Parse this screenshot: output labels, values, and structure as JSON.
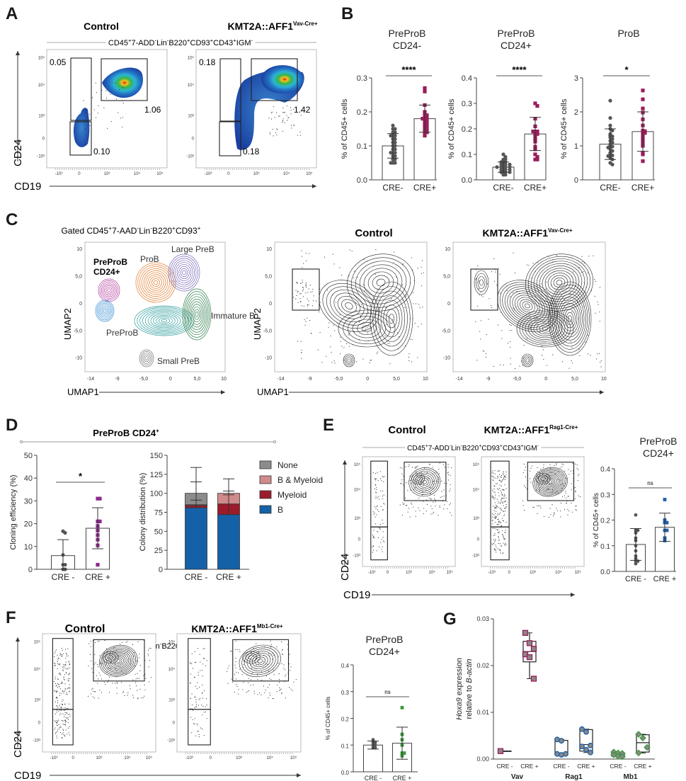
{
  "panels": {
    "A": "A",
    "B": "B",
    "C": "C",
    "D": "D",
    "E": "E",
    "F": "F",
    "G": "G"
  },
  "gating": {
    "full": [
      [
        "CD45",
        ""
      ],
      [
        "+",
        "sup"
      ],
      [
        "7-ADD",
        ""
      ],
      [
        "-",
        "sup"
      ],
      [
        "Lin",
        ""
      ],
      [
        "-",
        "sup"
      ],
      [
        "B220",
        ""
      ],
      [
        "+",
        "sup"
      ],
      [
        "CD93",
        ""
      ],
      [
        "+",
        "sup"
      ],
      [
        "CD43",
        ""
      ],
      [
        "+",
        "sup"
      ],
      [
        "IGM",
        ""
      ],
      [
        "-",
        "sup"
      ]
    ],
    "umap": [
      [
        "Gated CD45",
        ""
      ],
      [
        "+",
        "sup"
      ],
      [
        "7-AAD",
        ""
      ],
      [
        "-",
        "sup"
      ],
      [
        "Lin",
        ""
      ],
      [
        "-",
        "sup"
      ],
      [
        "B220",
        ""
      ],
      [
        "+",
        "sup"
      ],
      [
        "CD93",
        ""
      ],
      [
        "+",
        "sup"
      ]
    ]
  },
  "labels": {
    "control": "Control",
    "kmt2a": "KMT2A::AFF1",
    "vav_sup": "Vav-Cre+",
    "rag1_sup": "Rag1-Cre+",
    "mb1_sup": "Mb1-Cre+",
    "cd24": "CD24",
    "cd19": "CD19",
    "umap1": "UMAP1",
    "umap2": "UMAP2",
    "flow_ticks": [
      "10⁵",
      "10⁴",
      "10³",
      "0",
      "-10³"
    ],
    "umap_xticks": [
      "-14",
      "-9",
      "-5,0",
      "0",
      "5,0",
      "10"
    ],
    "umap_yticks": [
      "10",
      "5,0",
      "0",
      "-5,0",
      "-10"
    ]
  },
  "panelA": {
    "control_gates": [
      "0.05",
      "1.06",
      "0.10"
    ],
    "kmt2a_gates": [
      "0.18",
      "1.42",
      "0.18"
    ]
  },
  "panelC": {
    "clusters": [
      "PreProB",
      "CD24+",
      "ProB",
      "Large PreB",
      "Immature B",
      "PreProB",
      "Small PreB"
    ]
  },
  "panelD": {
    "title": "PreProB CD24",
    "title_sup": "+"
  },
  "colors": {
    "cre_minus": "#555555",
    "vav_cre_plus": "#9b1d5a",
    "cloning_cre_plus": "#8b2a8b",
    "rag1": "#1f5fa8",
    "mb1": "#3c9a3c",
    "B": "#1461a8",
    "Myeloid": "#9b1b2a",
    "B & Myeloid": "#d08a8a",
    "None": "#8c8c8c"
  },
  "chart_data": [
    {
      "id": "B1",
      "type": "bar",
      "title": [
        "PreProB",
        "CD24-"
      ],
      "ylabel": "% of CD45+ cells",
      "categories": [
        "CRE-",
        "CRE+"
      ],
      "ylim": [
        0,
        0.3
      ],
      "yticks": [
        "0.0",
        "0.1",
        "0.2",
        "0.3"
      ],
      "ytick_values": [
        0,
        0.1,
        0.2,
        0.3
      ],
      "means": [
        0.1,
        0.18
      ],
      "sd": [
        0.036,
        0.04
      ],
      "significance": "****",
      "points": [
        [
          0.16,
          0.15,
          0.15,
          0.14,
          0.14,
          0.13,
          0.13,
          0.13,
          0.12,
          0.12,
          0.11,
          0.11,
          0.1,
          0.1,
          0.09,
          0.09,
          0.08,
          0.08,
          0.08,
          0.07,
          0.07,
          0.06,
          0.06,
          0.05,
          0.05,
          0.05
        ],
        [
          0.27,
          0.26,
          0.22,
          0.2,
          0.19,
          0.19,
          0.18,
          0.18,
          0.18,
          0.17,
          0.17,
          0.16,
          0.16,
          0.15,
          0.15,
          0.14,
          0.14,
          0.13
        ]
      ]
    },
    {
      "id": "B2",
      "type": "bar",
      "title": [
        "PreProB",
        "CD24+"
      ],
      "ylabel": "% of CD45+ cells",
      "categories": [
        "CRE-",
        "CRE+"
      ],
      "ylim": [
        0,
        0.4
      ],
      "yticks": [
        "0.0",
        "0.1",
        "0.2",
        "0.3",
        "0.4"
      ],
      "ytick_values": [
        0,
        0.1,
        0.2,
        0.3,
        0.4
      ],
      "means": [
        0.05,
        0.18
      ],
      "sd": [
        0.02,
        0.065
      ],
      "significance": "****",
      "points": [
        [
          0.1,
          0.09,
          0.08,
          0.08,
          0.07,
          0.07,
          0.07,
          0.06,
          0.06,
          0.06,
          0.06,
          0.05,
          0.05,
          0.05,
          0.05,
          0.05,
          0.04,
          0.04,
          0.04,
          0.04,
          0.03,
          0.03,
          0.03,
          0.03,
          0.02,
          0.02
        ],
        [
          0.3,
          0.29,
          0.24,
          0.21,
          0.19,
          0.19,
          0.19,
          0.18,
          0.18,
          0.17,
          0.16,
          0.15,
          0.13,
          0.12,
          0.1,
          0.09,
          0.08,
          0.08
        ]
      ]
    },
    {
      "id": "B3",
      "type": "bar",
      "title": [
        "ProB"
      ],
      "ylabel": "% of CD45+ cells",
      "categories": [
        "CRE-",
        "CRE+"
      ],
      "ylim": [
        0,
        3
      ],
      "yticks": [
        "0",
        "1",
        "2",
        "3"
      ],
      "ytick_values": [
        0,
        1,
        2,
        3
      ],
      "means": [
        1.05,
        1.42
      ],
      "sd": [
        0.45,
        0.58
      ],
      "significance": "*",
      "points": [
        [
          2.33,
          1.82,
          1.6,
          1.5,
          1.45,
          1.35,
          1.3,
          1.28,
          1.25,
          1.2,
          1.15,
          1.1,
          1.05,
          1.0,
          0.98,
          0.95,
          0.9,
          0.85,
          0.8,
          0.75,
          0.72,
          0.7,
          0.65,
          0.6,
          0.5,
          0.45
        ],
        [
          2.63,
          2.37,
          2.1,
          1.98,
          1.78,
          1.6,
          1.45,
          1.43,
          1.4,
          1.38,
          1.3,
          1.2,
          1.15,
          1.05,
          1.0,
          0.8,
          0.75,
          0.55
        ]
      ]
    },
    {
      "id": "D1",
      "type": "bar",
      "title": [],
      "ylabel": "Cloning efficiency (%)",
      "categories": [
        "CRE -",
        "CRE +"
      ],
      "ylim": [
        0,
        50
      ],
      "yticks": [
        "0",
        "10",
        "20",
        "30",
        "40",
        "50"
      ],
      "ytick_values": [
        0,
        10,
        20,
        30,
        40,
        50
      ],
      "means": [
        6,
        18
      ],
      "sd": [
        7,
        9
      ],
      "significance": "*",
      "points": [
        [
          16.7,
          16,
          6.3,
          2,
          2,
          0,
          0
        ],
        [
          31,
          31,
          21,
          21,
          19,
          17,
          15,
          13,
          10.5,
          2
        ]
      ]
    },
    {
      "id": "D2",
      "type": "stacked-bar",
      "ylabel": "Colony distribution (%)",
      "categories": [
        "CRE -",
        "CRE +"
      ],
      "ylim": [
        0,
        150
      ],
      "yticks": [
        "0",
        "25",
        "50",
        "75",
        "100",
        "125",
        "150"
      ],
      "ytick_values": [
        0,
        25,
        50,
        75,
        100,
        125,
        150
      ],
      "series": [
        {
          "name": "B",
          "values": [
            81,
            72
          ],
          "sd": [
            0,
            0
          ]
        },
        {
          "name": "Myeloid",
          "values": [
            3,
            14
          ],
          "sd": [
            0,
            0
          ]
        },
        {
          "name": "B & Myeloid",
          "values": [
            1,
            14
          ],
          "sd": [
            0,
            0
          ]
        },
        {
          "name": "None",
          "values": [
            15,
            0
          ],
          "sd": [
            0,
            0
          ]
        }
      ],
      "error_bars": [
        [
          82,
          91,
          115,
          134
        ],
        [
          72,
          98,
          103,
          119
        ]
      ],
      "legend": [
        "None",
        "B & Myeloid",
        "Myeloid",
        "B"
      ],
      "legend_position": "right"
    },
    {
      "id": "E",
      "type": "bar",
      "title": [
        "PreProB",
        "CD24+"
      ],
      "ylabel": "% of CD45+ cells",
      "categories": [
        "CRE -",
        "CRE +"
      ],
      "ylim": [
        0,
        0.4
      ],
      "yticks": [
        "0.0",
        "0.1",
        "0.2",
        "0.3",
        "0.4"
      ],
      "ytick_values": [
        0,
        0.1,
        0.2,
        0.3,
        0.4
      ],
      "means": [
        0.105,
        0.172
      ],
      "sd": [
        0.062,
        0.055
      ],
      "significance": "ns",
      "points": [
        [
          0.22,
          0.16,
          0.16,
          0.15,
          0.13,
          0.12,
          0.1,
          0.08,
          0.06,
          0.05,
          0.04,
          0.04,
          0.03
        ],
        [
          0.28,
          0.2,
          0.19,
          0.19,
          0.16,
          0.16,
          0.13,
          0.12
        ]
      ]
    },
    {
      "id": "F",
      "type": "bar",
      "title": [
        "PreProB",
        "CD24+"
      ],
      "ylabel": "% of CD45+ cells",
      "categories": [
        "CRE -",
        "CRE +"
      ],
      "ylim": [
        0,
        0.4
      ],
      "yticks": [
        "0.0",
        "0.1",
        "0.2",
        "0.3",
        "0.4"
      ],
      "ytick_values": [
        0,
        0.1,
        0.2,
        0.3,
        0.4
      ],
      "means": [
        0.1,
        0.107
      ],
      "sd": [
        0.015,
        0.06
      ],
      "significance": "ns",
      "points": [
        [
          0.12,
          0.11,
          0.11,
          0.1,
          0.1,
          0.09,
          0.09
        ],
        [
          0.24,
          0.14,
          0.12,
          0.1,
          0.07,
          0.07,
          0.06
        ]
      ]
    },
    {
      "id": "G",
      "type": "box",
      "ylabel": [
        "Hoxa9",
        " expression",
        "relative to ",
        "B-actin"
      ],
      "ylim": [
        0,
        0.03
      ],
      "yticks": [
        "0.00",
        "0.01",
        "0.02",
        "0.03"
      ],
      "ytick_values": [
        0,
        0.01,
        0.02,
        0.03
      ],
      "groups": [
        "Vav",
        "Rag1",
        "Mb1"
      ],
      "categories": [
        "CRE -",
        "CRE +"
      ],
      "boxes": [
        {
          "group": "Vav",
          "cat": "CRE -",
          "min": 0.0017,
          "q1": 0.0017,
          "median": 0.0017,
          "q3": 0.0017,
          "max": 0.0017,
          "points": [
            0.0017
          ]
        },
        {
          "group": "Vav",
          "cat": "CRE +",
          "min": 0.0172,
          "q1": 0.0208,
          "median": 0.023,
          "q3": 0.0252,
          "max": 0.027,
          "points": [
            0.027,
            0.0248,
            0.0236,
            0.0224,
            0.0218,
            0.0172
          ]
        },
        {
          "group": "Rag1",
          "cat": "CRE -",
          "min": 0.0009,
          "q1": 0.001,
          "median": 0.0011,
          "q3": 0.004,
          "max": 0.0042,
          "points": [
            0.0042,
            0.0039,
            0.0011,
            0.0011,
            0.0009
          ]
        },
        {
          "group": "Rag1",
          "cat": "CRE +",
          "min": 0.0014,
          "q1": 0.0017,
          "median": 0.0031,
          "q3": 0.0063,
          "max": 0.0064,
          "points": [
            0.0064,
            0.0058,
            0.0029,
            0.0027,
            0.002,
            0.0014
          ]
        },
        {
          "group": "Mb1",
          "cat": "CRE -",
          "min": 0.0005,
          "q1": 0.0006,
          "median": 0.0009,
          "q3": 0.0013,
          "max": 0.0015,
          "points": [
            0.0015,
            0.0013,
            0.0012,
            0.0009,
            0.0006,
            0.0005
          ]
        },
        {
          "group": "Mb1",
          "cat": "CRE +",
          "min": 0.0013,
          "q1": 0.0015,
          "median": 0.0035,
          "q3": 0.0052,
          "max": 0.0053,
          "points": [
            0.0053,
            0.0045,
            0.0025,
            0.0013
          ]
        }
      ]
    }
  ]
}
